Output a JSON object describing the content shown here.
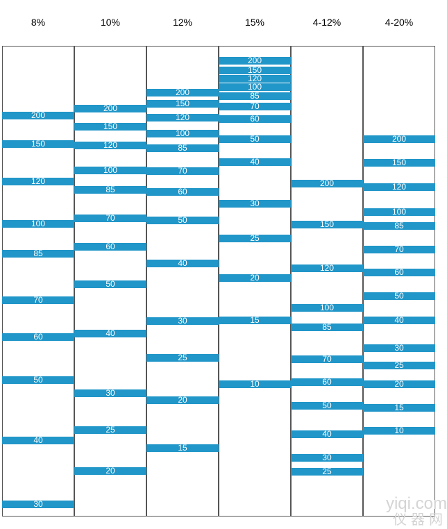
{
  "gel": {
    "band_color": "#2196c8",
    "label_color": "#ffffff",
    "lanes": [
      {
        "concentration": "8%",
        "markers": [
          "200",
          "150",
          "120",
          "100",
          "85",
          "70",
          "60",
          "50",
          "40",
          "30"
        ]
      },
      {
        "concentration": "10%",
        "markers": [
          "200",
          "150",
          "120",
          "100",
          "85",
          "70",
          "60",
          "50",
          "40",
          "30",
          "25",
          "20"
        ]
      },
      {
        "concentration": "12%",
        "markers": [
          "200",
          "150",
          "120",
          "100",
          "85",
          "70",
          "60",
          "50",
          "40",
          "30",
          "25",
          "20",
          "15"
        ]
      },
      {
        "concentration": "15%",
        "markers": [
          "200",
          "150",
          "120",
          "100",
          "85",
          "70",
          "60",
          "50",
          "40",
          "30",
          "25",
          "20",
          "15",
          "10"
        ]
      },
      {
        "concentration": "4-12%",
        "markers": [
          "200",
          "150",
          "120",
          "100",
          "85",
          "70",
          "60",
          "50",
          "40",
          "30",
          "25"
        ]
      },
      {
        "concentration": "4-20%",
        "markers": [
          "200",
          "150",
          "120",
          "100",
          "85",
          "70",
          "60",
          "50",
          "40",
          "30",
          "25",
          "20",
          "15",
          "10"
        ]
      }
    ]
  },
  "watermark": {
    "line1": "yiqi.com",
    "line2": "仪器网"
  }
}
